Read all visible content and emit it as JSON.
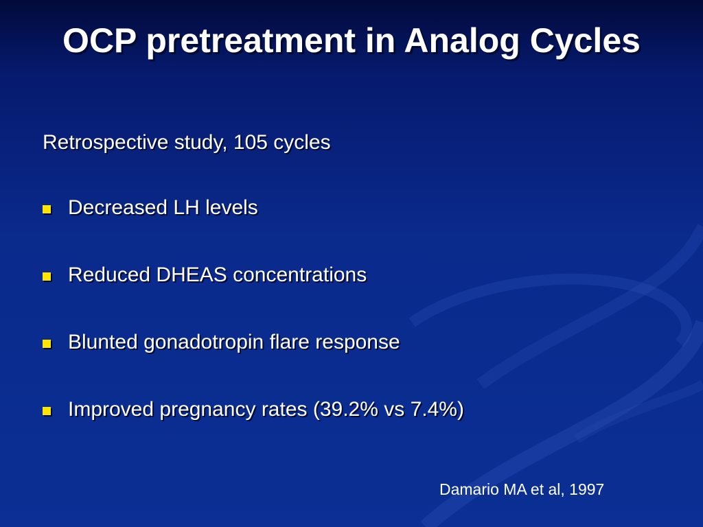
{
  "slide": {
    "title": "OCP pretreatment in Analog Cycles",
    "subtitle": "Retrospective study, 105 cycles",
    "bullets": [
      "Decreased LH levels",
      "Reduced DHEAS concentrations",
      "Blunted gonadotropin flare  response",
      "Improved pregnancy rates (39.2% vs 7.4%)"
    ],
    "citation": "Damario MA et al, 1997",
    "colors": {
      "background": "#0b2f94",
      "text": "#ffffff",
      "bullet": "#ffe600"
    }
  }
}
